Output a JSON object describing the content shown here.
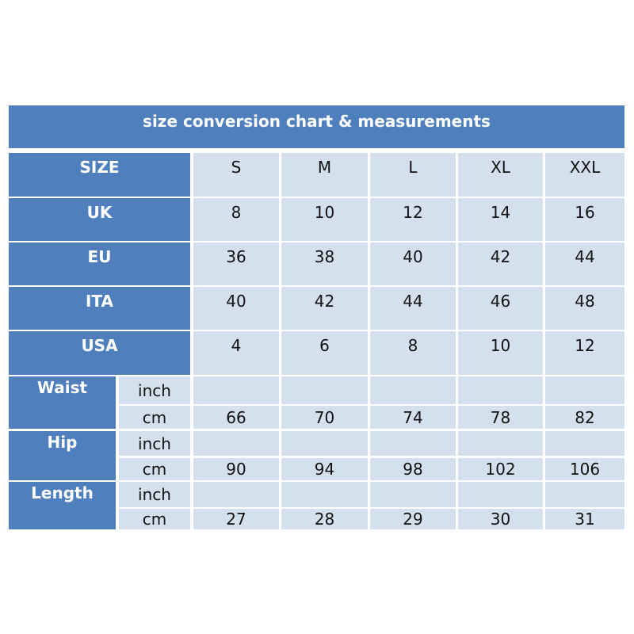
{
  "title": "size conversion chart  & measurements",
  "colors": {
    "header": "#4f7fbd",
    "cell": "#d5e0ef"
  },
  "size_row": {
    "label": "SIZE",
    "values": [
      "S",
      "M",
      "L",
      "XL",
      "XXL"
    ]
  },
  "conversions": [
    {
      "label": "UK",
      "values": [
        "8",
        "10",
        "12",
        "14",
        "16"
      ]
    },
    {
      "label": "EU",
      "values": [
        "36",
        "38",
        "40",
        "42",
        "44"
      ]
    },
    {
      "label": "ITA",
      "values": [
        "40",
        "42",
        "44",
        "46",
        "48"
      ]
    },
    {
      "label": "USA",
      "values": [
        "4",
        "6",
        "8",
        "10",
        "12"
      ]
    }
  ],
  "measurements": [
    {
      "label": "Waist",
      "rows": [
        {
          "unit": "inch",
          "values": [
            "",
            "",
            "",
            "",
            ""
          ]
        },
        {
          "unit": "cm",
          "values": [
            "66",
            "70",
            "74",
            "78",
            "82"
          ]
        }
      ]
    },
    {
      "label": "Hip",
      "rows": [
        {
          "unit": "inch",
          "values": [
            "",
            "",
            "",
            "",
            ""
          ]
        },
        {
          "unit": "cm",
          "values": [
            "90",
            "94",
            "98",
            "102",
            "106"
          ]
        }
      ]
    },
    {
      "label": "Length",
      "rows": [
        {
          "unit": "inch",
          "values": [
            "",
            "",
            "",
            "",
            ""
          ]
        },
        {
          "unit": "cm",
          "values": [
            "27",
            "28",
            "29",
            "30",
            "31"
          ]
        }
      ]
    }
  ]
}
